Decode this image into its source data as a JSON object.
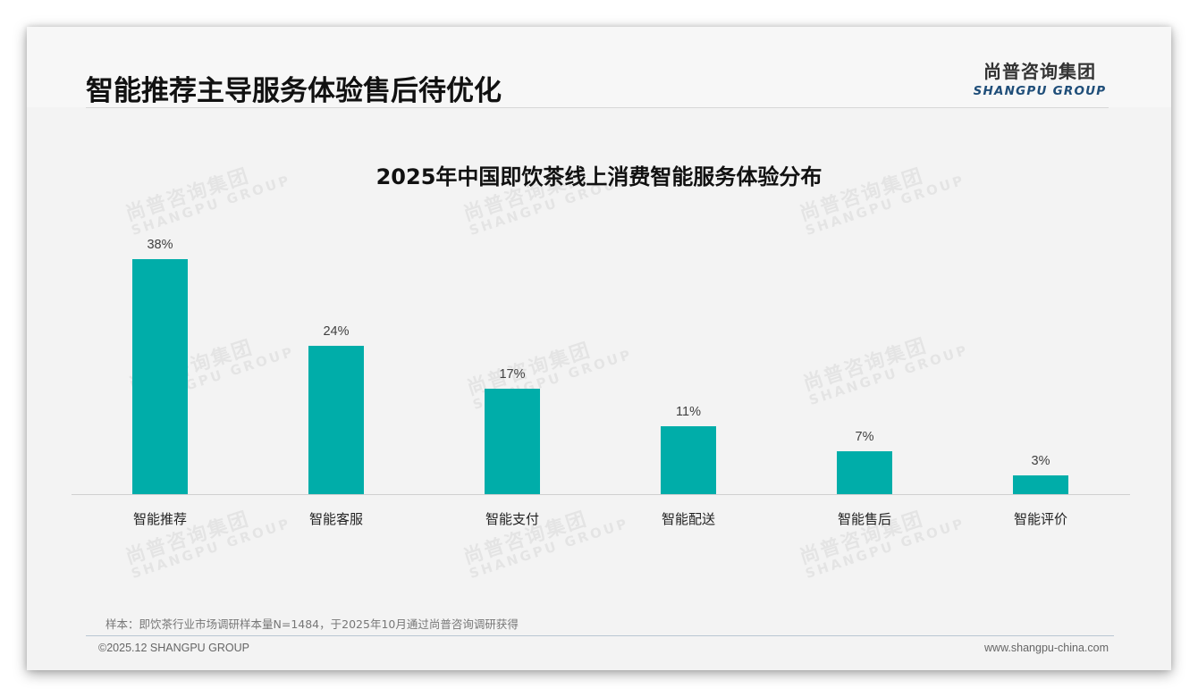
{
  "header": {
    "title": "智能推荐主导服务体验售后待优化",
    "logo_cn": "尚普咨询集团",
    "logo_en": "SHANGPU GROUP"
  },
  "watermark": {
    "cn": "尚普咨询集团",
    "en": "SHANGPU GROUP"
  },
  "chart_data": {
    "type": "bar",
    "title": "2025年中国即饮茶线上消费智能服务体验分布",
    "categories": [
      "智能推荐",
      "智能客服",
      "智能支付",
      "智能配送",
      "智能售后",
      "智能评价"
    ],
    "values": [
      38,
      24,
      17,
      11,
      7,
      3
    ],
    "value_labels": [
      "38%",
      "24%",
      "17%",
      "11%",
      "7%",
      "3%"
    ],
    "unit": "%",
    "xlabel": "",
    "ylabel": "",
    "ylim": [
      0,
      40
    ],
    "grid": false,
    "legend": null,
    "bar_color": "#00ada9"
  },
  "footer": {
    "source": "样本：即饮茶行业市场调研样本量N=1484，于2025年10月通过尚普咨询调研获得",
    "copyright": "©2025.12 SHANGPU GROUP",
    "website": "www.shangpu-china.com"
  },
  "colors": {
    "accent": "#00ada9",
    "logo_en": "#1f4e79",
    "background": "#f3f3f3"
  }
}
